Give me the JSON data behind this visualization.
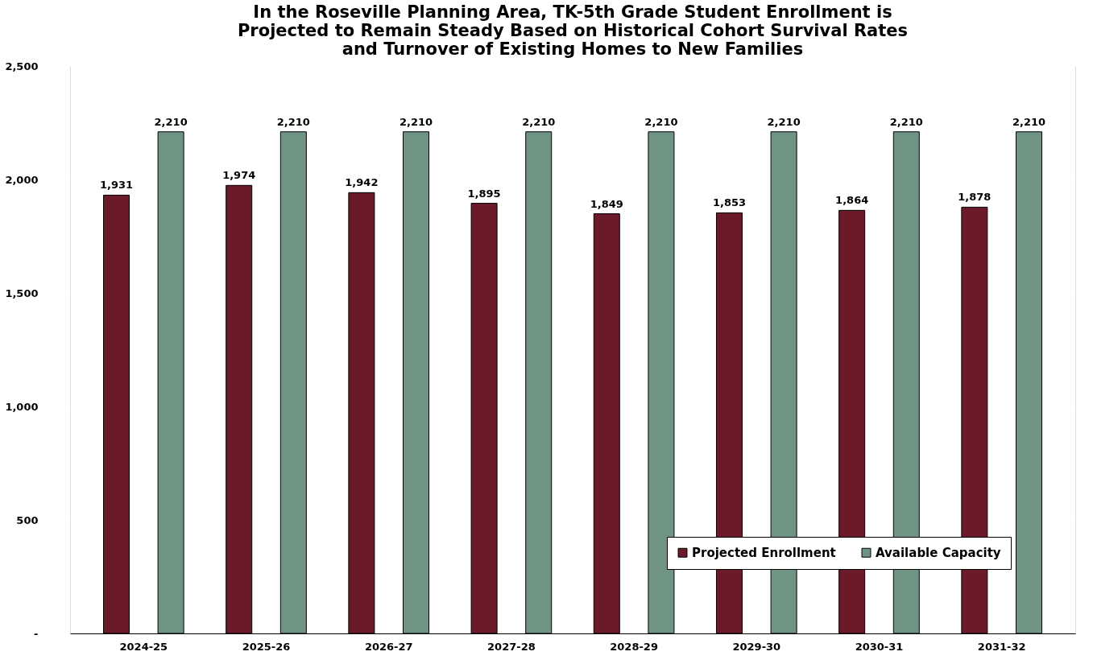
{
  "chart_data": {
    "type": "bar",
    "title": "In the Roseville Planning Area, TK-5th Grade Student Enrollment is\nProjected to Remain Steady Based on Historical Cohort Survival Rates\nand Turnover of Existing Homes to New Families",
    "categories": [
      "2024-25",
      "2025-26",
      "2026-27",
      "2027-28",
      "2028-29",
      "2029-30",
      "2030-31",
      "2031-32"
    ],
    "series": [
      {
        "name": "Projected Enrollment",
        "color": "#6b1a2a",
        "values": [
          1931,
          1974,
          1942,
          1895,
          1849,
          1853,
          1864,
          1878
        ],
        "value_labels": [
          "1,931",
          "1,974",
          "1,942",
          "1,895",
          "1,849",
          "1,853",
          "1,864",
          "1,878"
        ]
      },
      {
        "name": "Available Capacity",
        "color": "#6f9484",
        "values": [
          2210,
          2210,
          2210,
          2210,
          2210,
          2210,
          2210,
          2210
        ],
        "value_labels": [
          "2,210",
          "2,210",
          "2,210",
          "2,210",
          "2,210",
          "2,210",
          "2,210",
          "2,210"
        ]
      }
    ],
    "ylim": [
      0,
      2500
    ],
    "yticks": [
      {
        "value": 0,
        "label": "-"
      },
      {
        "value": 500,
        "label": "500"
      },
      {
        "value": 1000,
        "label": "1,000"
      },
      {
        "value": 1500,
        "label": "1,500"
      },
      {
        "value": 2000,
        "label": "2,000"
      },
      {
        "value": 2500,
        "label": "2,500"
      }
    ],
    "grid": "y",
    "legend": "bottom right"
  }
}
